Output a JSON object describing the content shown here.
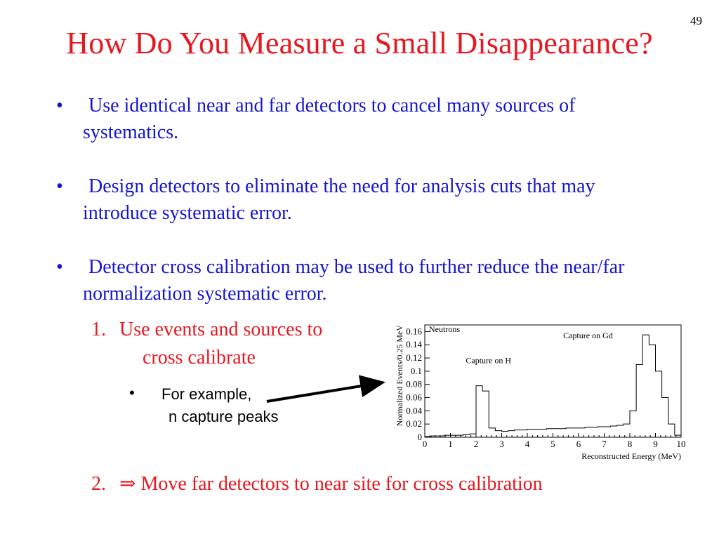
{
  "slide": {
    "number": "49",
    "title": "How Do You Measure a Small Disappearance?"
  },
  "bullets": [
    {
      "marker": "•",
      "text": "Use identical near and far detectors to cancel many sources of systematics."
    },
    {
      "marker": "•",
      "text": "Design detectors to eliminate the need for analysis cuts that may introduce systematic error."
    },
    {
      "marker": "•",
      "text": "Detector cross calibration may be used to further reduce the near/far normalization systematic error."
    }
  ],
  "sub_items": {
    "item1_number": "1.",
    "item1_line1": "Use events and sources to",
    "item1_line2": "cross calibrate",
    "example_marker": "•",
    "example_line1": "For example,",
    "example_line2": "n capture peaks",
    "item2_number": "2.",
    "item2_text": "⇒ Move far detectors to near site for cross calibration"
  },
  "colors": {
    "title": "#e8171f",
    "bullets": "#1515d0",
    "sub_items": "#e8171f",
    "arrow": "#000000"
  },
  "chart_data": {
    "type": "histogram",
    "xlabel": "Reconstructed Energy (MeV)",
    "ylabel": "Normalized Events/0.25 MeV",
    "xlim": [
      0,
      10
    ],
    "ylim": [
      0,
      0.17
    ],
    "xticks": [
      "0",
      "1",
      "2",
      "3",
      "4",
      "5",
      "6",
      "7",
      "8",
      "9",
      "10"
    ],
    "yticks": [
      "0",
      "0.02",
      "0.04",
      "0.06",
      "0.08",
      "0.1",
      "0.12",
      "0.14",
      "0.16"
    ],
    "legend": "Neutrons",
    "annotations": [
      "Capture on H",
      "Capture on Gd"
    ],
    "bin_width": 0.25,
    "bin_start": 0,
    "values": [
      0.001,
      0.002,
      0.002,
      0.003,
      0.003,
      0.003,
      0.004,
      0.005,
      0.078,
      0.07,
      0.014,
      0.01,
      0.009,
      0.01,
      0.011,
      0.011,
      0.012,
      0.012,
      0.012,
      0.013,
      0.013,
      0.013,
      0.014,
      0.014,
      0.014,
      0.015,
      0.015,
      0.016,
      0.016,
      0.017,
      0.018,
      0.02,
      0.04,
      0.11,
      0.155,
      0.14,
      0.1,
      0.06,
      0.02,
      0.003
    ]
  }
}
